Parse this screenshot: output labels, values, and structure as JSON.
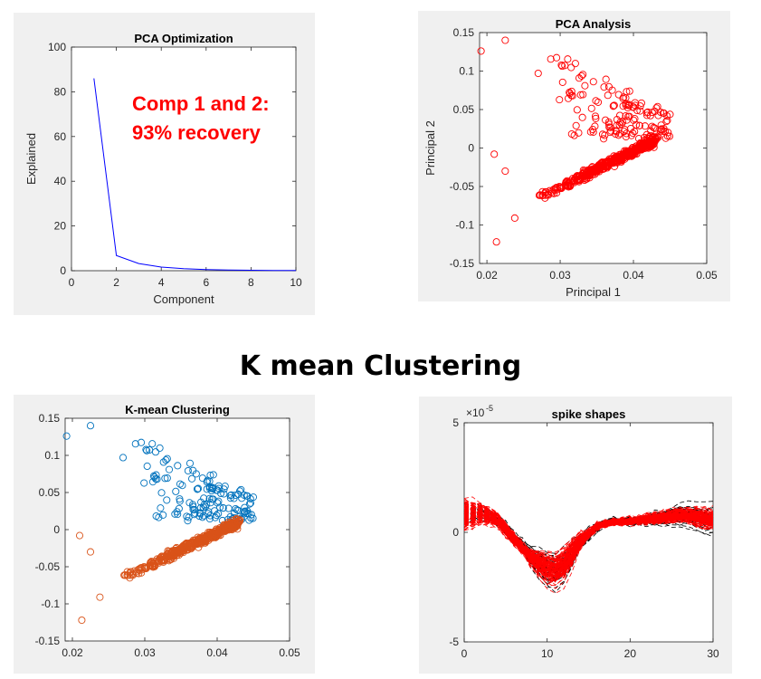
{
  "heading": "K mean Clustering",
  "colors": {
    "line_blue": "#0000ff",
    "red": "#ff0000",
    "cluster_blue": "#0072bd",
    "cluster_orange": "#d95319",
    "black": "#000000",
    "panel_bg": "#f0f0f0"
  },
  "chart_data": [
    {
      "id": "pca-optimization",
      "type": "line",
      "title": "PCA Optimization",
      "xlabel": "Component",
      "ylabel": "Explained",
      "xlim": [
        0,
        10
      ],
      "ylim": [
        0,
        100
      ],
      "xticks": [
        0,
        2,
        4,
        6,
        8,
        10
      ],
      "yticks": [
        0,
        20,
        40,
        60,
        80,
        100
      ],
      "x": [
        1,
        2,
        3,
        4,
        5,
        6,
        7,
        8,
        9,
        10
      ],
      "y": [
        86,
        6.8,
        3.2,
        1.6,
        0.9,
        0.5,
        0.3,
        0.2,
        0.1,
        0.1
      ],
      "annotation": [
        "Comp 1 and 2:",
        "93% recovery"
      ]
    },
    {
      "id": "pca-analysis",
      "type": "scatter",
      "title": "PCA Analysis",
      "xlabel": "Principal 1",
      "ylabel": "Principal 2",
      "xlim": [
        0.019,
        0.05
      ],
      "ylim": [
        -0.15,
        0.15
      ],
      "xticks": [
        0.02,
        0.03,
        0.04,
        0.05
      ],
      "yticks": [
        -0.15,
        -0.1,
        -0.05,
        0,
        0.05,
        0.1,
        0.15
      ],
      "outliers": [
        [
          0.0192,
          0.126
        ],
        [
          0.0225,
          0.14
        ],
        [
          0.021,
          -0.008
        ],
        [
          0.0225,
          -0.03
        ],
        [
          0.0238,
          -0.091
        ],
        [
          0.0213,
          -0.122
        ],
        [
          0.027,
          0.097
        ]
      ],
      "upper_cluster": {
        "x_range": [
          0.028,
          0.045
        ],
        "y_range": [
          0.01,
          0.135
        ],
        "count": 150
      },
      "lower_band": {
        "x_range": [
          0.027,
          0.043
        ],
        "y_at_start": -0.065,
        "y_at_end": 0.01,
        "count": 480
      }
    },
    {
      "id": "k-mean-clustering",
      "type": "scatter",
      "title": "K-mean Clustering",
      "xlabel": "",
      "ylabel": "",
      "xlim": [
        0.019,
        0.05
      ],
      "ylim": [
        -0.15,
        0.15
      ],
      "xticks": [
        0.02,
        0.03,
        0.04,
        0.05
      ],
      "yticks": [
        -0.15,
        -0.1,
        -0.05,
        0,
        0.05,
        0.1,
        0.15
      ],
      "series": [
        {
          "cluster": 1,
          "color": "#0072bd"
        },
        {
          "cluster": 2,
          "color": "#d95319"
        }
      ]
    },
    {
      "id": "spike-shapes",
      "type": "line",
      "title": "spike shapes",
      "xlabel": "",
      "ylabel": "",
      "exponent_label": "×10",
      "exponent_value": "-5",
      "xlim": [
        0,
        30
      ],
      "ylim": [
        -5,
        5
      ],
      "xticks": [
        0,
        10,
        20,
        30
      ],
      "yticks": [
        -5,
        0,
        5
      ],
      "mean_waveform": {
        "x": [
          0,
          2,
          4,
          6,
          8,
          10,
          11,
          12,
          14,
          16,
          18,
          20,
          22,
          24,
          26,
          28,
          30
        ],
        "y": [
          0.8,
          0.9,
          0.6,
          -0.3,
          -1.1,
          -1.7,
          -1.8,
          -1.5,
          -0.4,
          0.3,
          0.5,
          0.5,
          0.6,
          0.7,
          0.8,
          0.7,
          0.6
        ]
      },
      "series": [
        {
          "color": "#000000",
          "style": "dashed",
          "count": 45
        },
        {
          "color": "#ff0000",
          "style": "dashed",
          "count": 140
        }
      ]
    }
  ]
}
